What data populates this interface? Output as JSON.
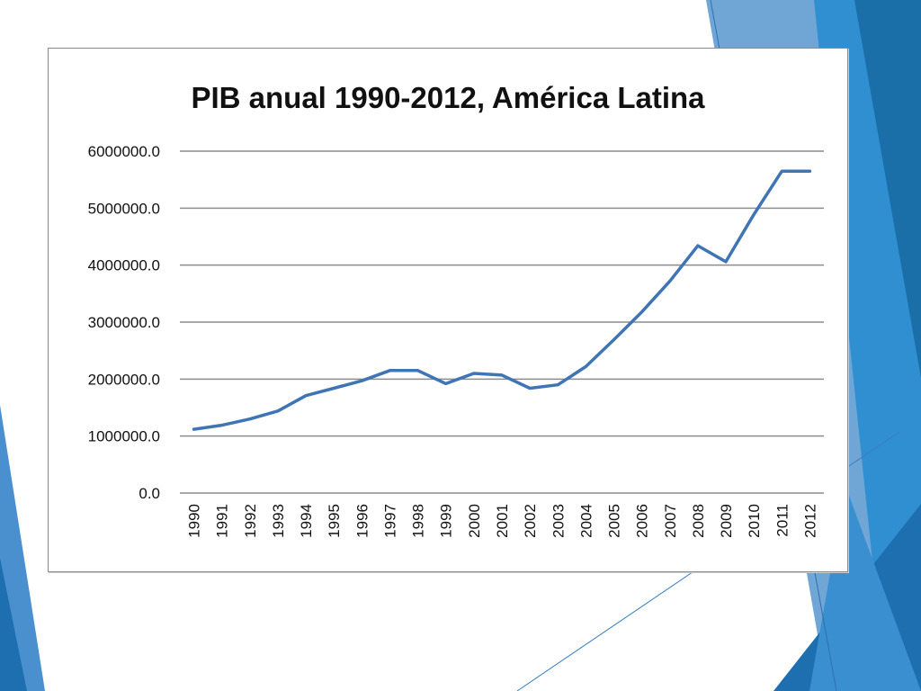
{
  "slide": {
    "colors": {
      "background": "#ffffff",
      "accent_dark": "#1a6fa8",
      "accent_mid": "#2f8fd0",
      "accent_light": "#6fa6d6"
    }
  },
  "chart_data": {
    "type": "line",
    "title": "PIB anual 1990-2012, América Latina",
    "xlabel": "",
    "ylabel": "",
    "ylim": [
      0,
      6000000
    ],
    "y_ticks": [
      "0.0",
      "1000000.0",
      "2000000.0",
      "3000000.0",
      "4000000.0",
      "5000000.0",
      "6000000.0"
    ],
    "categories": [
      "1990",
      "1991",
      "1992",
      "1993",
      "1994",
      "1995",
      "1996",
      "1997",
      "1998",
      "1999",
      "2000",
      "2001",
      "2002",
      "2003",
      "2004",
      "2005",
      "2006",
      "2007",
      "2008",
      "2009",
      "2010",
      "2011",
      "2012"
    ],
    "series": [
      {
        "color": "#3f74b5",
        "values": [
          1120000,
          1190000,
          1300000,
          1440000,
          1710000,
          1840000,
          1970000,
          2150000,
          2150000,
          1920000,
          2100000,
          2070000,
          1840000,
          1900000,
          2220000,
          2690000,
          3180000,
          3720000,
          4340000,
          4060000,
          4890000,
          5650000,
          5650000
        ]
      }
    ],
    "grid": true,
    "legend": "none"
  }
}
